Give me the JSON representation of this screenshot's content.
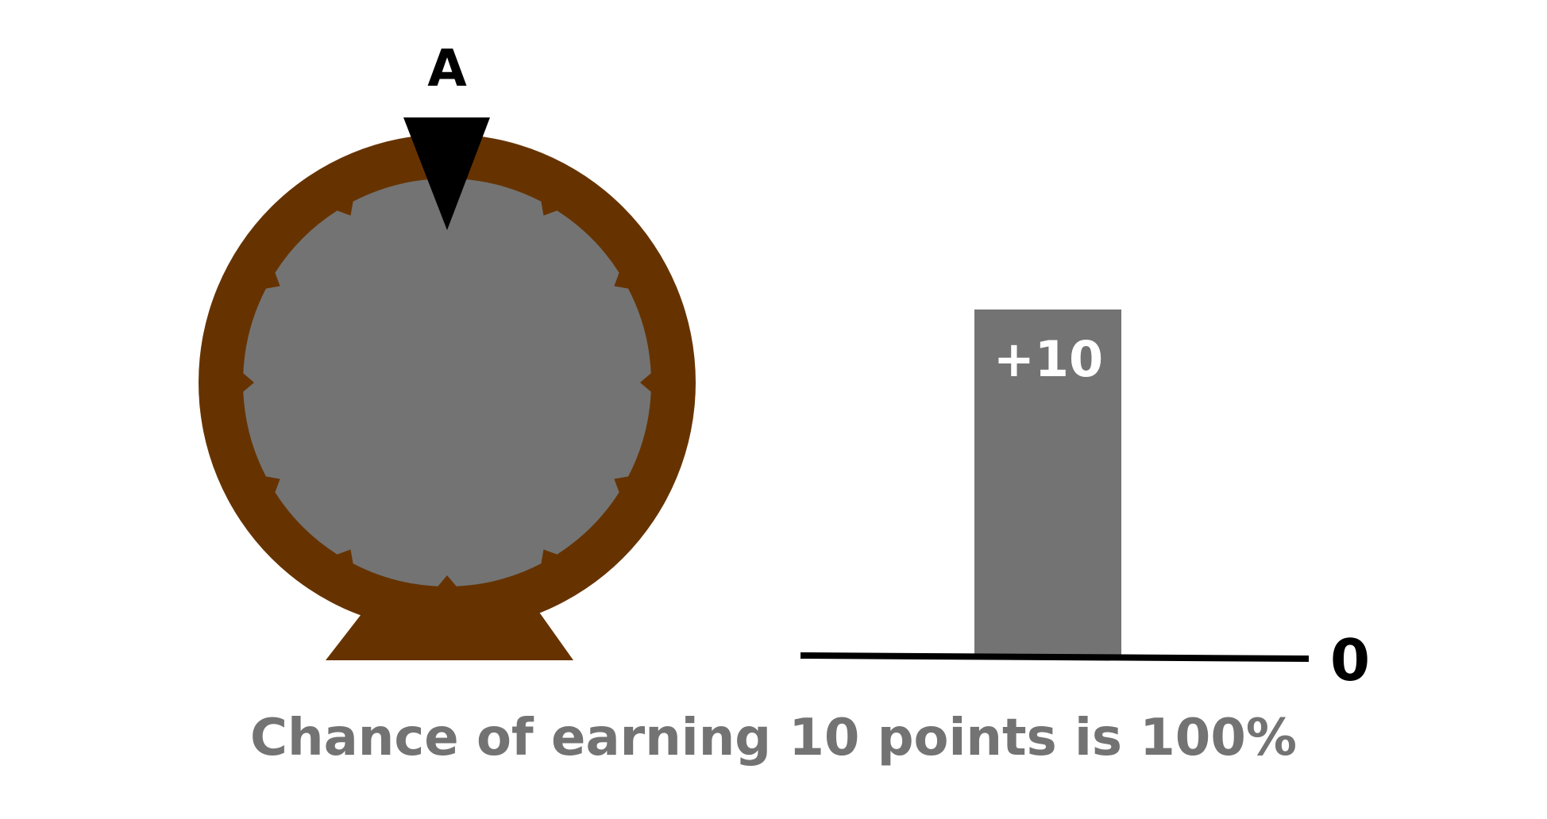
{
  "wheel": {
    "label": "A",
    "rim_color": "#663300",
    "face_color": "#737373",
    "pointer_color": "#000000",
    "segments": 12
  },
  "outcome": {
    "bar_label": "+10",
    "bar_color": "#737373",
    "baseline_label": "0"
  },
  "caption": "Chance of earning 10 points is 100%"
}
